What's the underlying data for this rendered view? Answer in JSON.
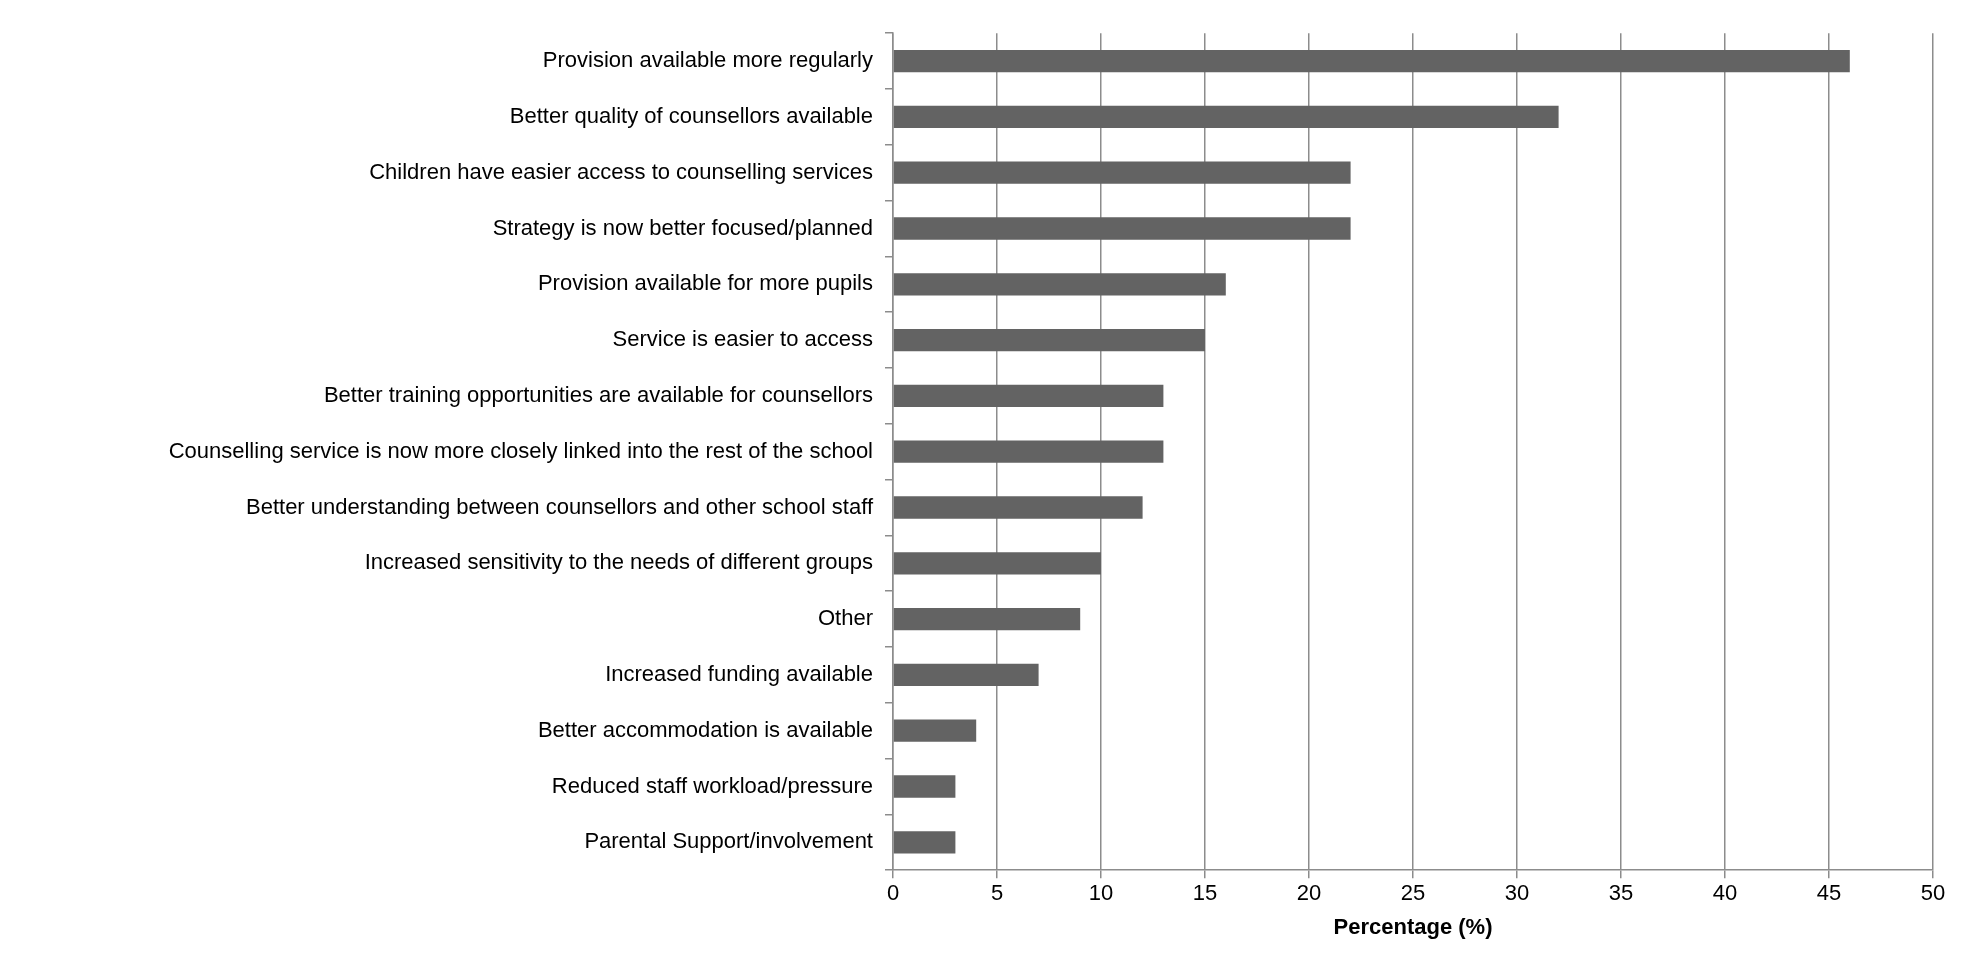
{
  "chart_data": {
    "type": "bar",
    "orientation": "horizontal",
    "xlabel": "Percentage (%)",
    "categories": [
      "Provision available more regularly",
      "Better quality of counsellors available",
      "Children have easier access to counselling services",
      "Strategy is now better focused/planned",
      "Provision available for more pupils",
      "Service is easier to access",
      "Better training opportunities are available for counsellors",
      "Counselling service is now more closely linked into the rest of the school",
      "Better understanding between counsellors and other school staff",
      "Increased sensitivity to the needs of different groups",
      "Other",
      "Increased funding available",
      "Better accommodation is available",
      "Reduced staff workload/pressure",
      "Parental Support/involvement"
    ],
    "values": [
      46,
      32,
      22,
      22,
      16,
      15,
      13,
      13,
      12,
      10,
      9,
      7,
      4,
      3,
      3
    ],
    "color": "#636363",
    "xlim": [
      0,
      50
    ],
    "xticks": [
      0,
      5,
      10,
      15,
      20,
      25,
      30,
      35,
      40,
      45,
      50
    ],
    "grid": "x",
    "legend": false
  }
}
